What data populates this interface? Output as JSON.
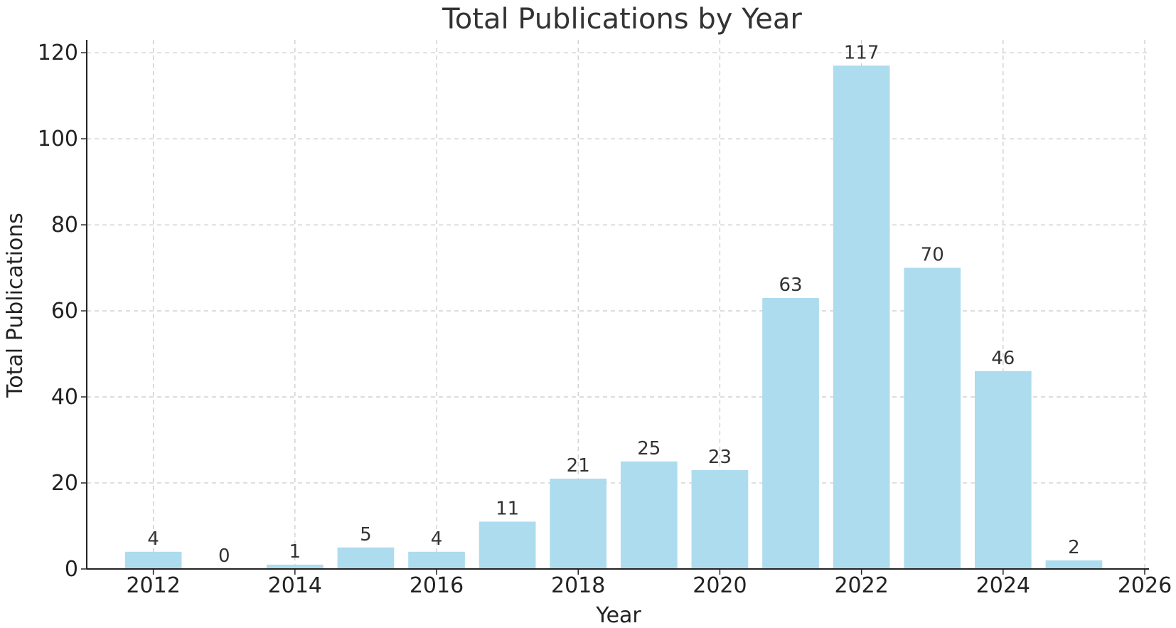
{
  "chart_data": {
    "type": "bar",
    "title": "Total Publications by Year",
    "xlabel": "Year",
    "ylabel": "Total Publications",
    "x": [
      2012,
      2013,
      2014,
      2015,
      2016,
      2017,
      2018,
      2019,
      2020,
      2021,
      2022,
      2023,
      2024,
      2025
    ],
    "values": [
      4,
      0,
      1,
      5,
      4,
      11,
      21,
      25,
      23,
      63,
      117,
      70,
      46,
      2
    ],
    "data_labels": [
      "4",
      "0",
      "1",
      "5",
      "4",
      "11",
      "21",
      "25",
      "23",
      "63",
      "117",
      "70",
      "46",
      "2"
    ],
    "xlim": [
      2011.06,
      2026.06
    ],
    "ylim": [
      0,
      123
    ],
    "xticks": [
      2012,
      2014,
      2016,
      2018,
      2020,
      2022,
      2024,
      2026
    ],
    "yticks": [
      0,
      20,
      40,
      60,
      80,
      100,
      120
    ],
    "bar_width": 0.8,
    "grid": true,
    "bar_color": "#ADDCEE"
  }
}
